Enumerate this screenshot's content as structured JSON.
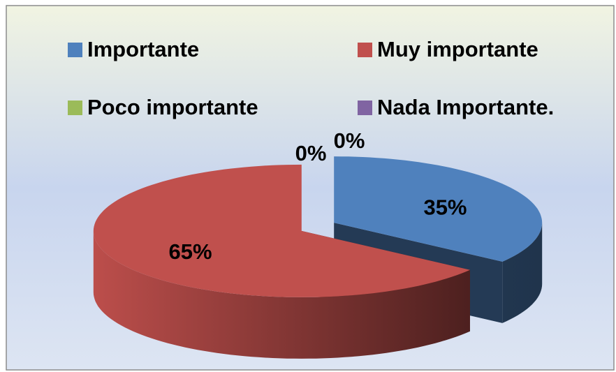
{
  "chart_data": {
    "type": "pie",
    "style": "3d-exploded",
    "categories": [
      "Importante",
      "Muy importante",
      "Poco importante",
      "Nada Importante."
    ],
    "values": [
      35,
      65,
      0,
      0
    ],
    "value_labels": [
      "35%",
      "65%",
      "0%",
      "0%"
    ],
    "colors": [
      "#4f81bd",
      "#c0504d",
      "#9bbb59",
      "#8064a2"
    ],
    "legend": "top"
  }
}
